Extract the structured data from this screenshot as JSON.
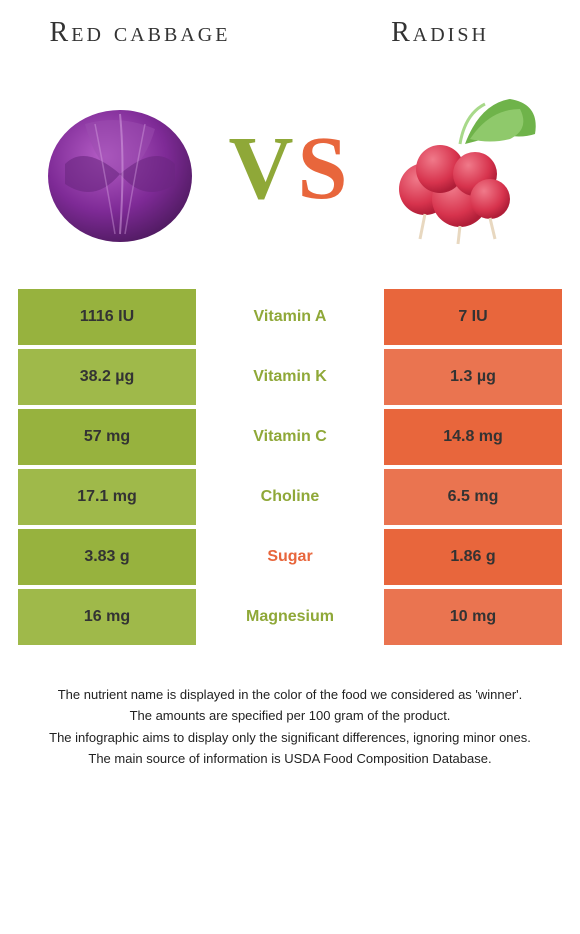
{
  "colors": {
    "left_base": "#97b23e",
    "left_alt": "#9fb94a",
    "mid": "#ffffff",
    "right_base": "#e8663c",
    "right_alt": "#ea7450",
    "label_winner_left": "#8fa838",
    "label_winner_right": "#e8663c",
    "vs_left": "#8fa838",
    "vs_right": "#e8663c"
  },
  "header": {
    "left_title": "Red cabbage",
    "right_title": "Radish"
  },
  "vs": {
    "v": "V",
    "s": "S"
  },
  "rows": [
    {
      "left": "1116 IU",
      "label": "Vitamin A",
      "right": "7 IU",
      "winner": "left"
    },
    {
      "left": "38.2 µg",
      "label": "Vitamin K",
      "right": "1.3 µg",
      "winner": "left"
    },
    {
      "left": "57 mg",
      "label": "Vitamin C",
      "right": "14.8 mg",
      "winner": "left"
    },
    {
      "left": "17.1 mg",
      "label": "Choline",
      "right": "6.5 mg",
      "winner": "left"
    },
    {
      "left": "3.83 g",
      "label": "Sugar",
      "right": "1.86 g",
      "winner": "right"
    },
    {
      "left": "16 mg",
      "label": "Magnesium",
      "right": "10 mg",
      "winner": "left"
    }
  ],
  "footnotes": [
    "The nutrient name is displayed in the color of the food we considered as 'winner'.",
    "The amounts are specified per 100 gram of the product.",
    "The infographic aims to display only the significant differences, ignoring minor ones.",
    "The main source of information is USDA Food Composition Database."
  ]
}
